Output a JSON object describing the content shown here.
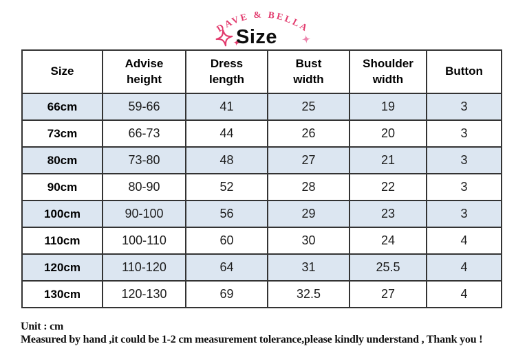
{
  "brand": {
    "name": "DAVE & BELLA"
  },
  "header": {
    "title": "Size"
  },
  "colors": {
    "brand_pink": "#e23a6d",
    "sparkle_light_pink": "#ec86ae",
    "row_stripe_blue": "#dce6f1",
    "table_border": "#333333"
  },
  "table": {
    "columns": [
      "Size",
      "Advise\nheight",
      "Dress\nlength",
      "Bust\nwidth",
      "Shoulder\nwidth",
      "Button"
    ],
    "rows": [
      [
        "66cm",
        "59-66",
        "41",
        "25",
        "19",
        "3"
      ],
      [
        "73cm",
        "66-73",
        "44",
        "26",
        "20",
        "3"
      ],
      [
        "80cm",
        "73-80",
        "48",
        "27",
        "21",
        "3"
      ],
      [
        "90cm",
        "80-90",
        "52",
        "28",
        "22",
        "3"
      ],
      [
        "100cm",
        "90-100",
        "56",
        "29",
        "23",
        "3"
      ],
      [
        "110cm",
        "100-110",
        "60",
        "30",
        "24",
        "4"
      ],
      [
        "120cm",
        "110-120",
        "64",
        "31",
        "25.5",
        "4"
      ],
      [
        "130cm",
        "120-130",
        "69",
        "32.5",
        "27",
        "4"
      ]
    ]
  },
  "footer": {
    "line1": "Unit : cm",
    "line2": "Measured by hand ,it could be 1-2 cm measurement tolerance,please kindly understand , Thank you !"
  }
}
